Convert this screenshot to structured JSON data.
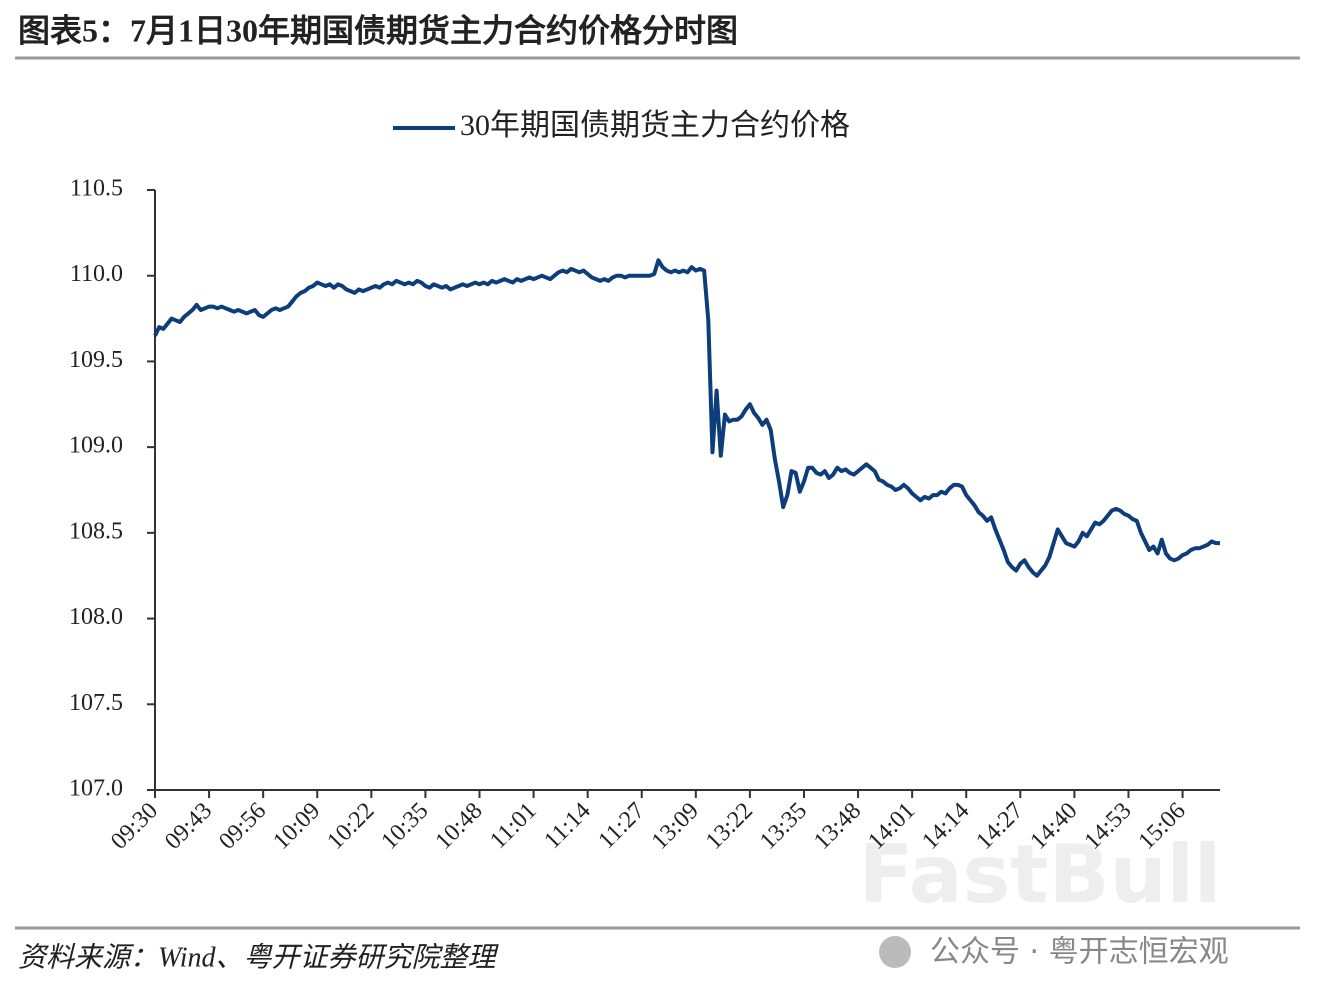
{
  "header": {
    "title": "图表5：7月1日30年期国债期货主力合约价格分时图"
  },
  "chart_data": {
    "type": "line",
    "categories": [
      "09:30",
      null,
      null,
      null,
      null,
      null,
      null,
      null,
      null,
      null,
      null,
      null,
      null,
      "09:43",
      null,
      null,
      null,
      null,
      null,
      null,
      null,
      null,
      null,
      null,
      null,
      null,
      "09:56",
      null,
      null,
      null,
      null,
      null,
      null,
      null,
      null,
      null,
      null,
      null,
      null,
      "10:09",
      null,
      null,
      null,
      null,
      null,
      null,
      null,
      null,
      null,
      null,
      null,
      null,
      "10:22",
      null,
      null,
      null,
      null,
      null,
      null,
      null,
      null,
      null,
      null,
      null,
      null,
      "10:35",
      null,
      null,
      null,
      null,
      null,
      null,
      null,
      null,
      null,
      null,
      null,
      null,
      "10:48",
      null,
      null,
      null,
      null,
      null,
      null,
      null,
      null,
      null,
      null,
      null,
      null,
      "11:01",
      null,
      null,
      null,
      null,
      null,
      null,
      null,
      null,
      null,
      null,
      null,
      null,
      "11:14",
      null,
      null,
      null,
      null,
      null,
      null,
      null,
      null,
      null,
      null,
      null,
      null,
      "11:27",
      null,
      null,
      null,
      null,
      null,
      null,
      null,
      null,
      null,
      null,
      null,
      null,
      "13:09",
      null,
      null,
      null,
      null,
      null,
      null,
      null,
      null,
      null,
      null,
      null,
      null,
      "13:22",
      null,
      null,
      null,
      null,
      null,
      null,
      null,
      null,
      null,
      null,
      null,
      null,
      "13:35",
      null,
      null,
      null,
      null,
      null,
      null,
      null,
      null,
      null,
      null,
      null,
      null,
      "13:48",
      null,
      null,
      null,
      null,
      null,
      null,
      null,
      null,
      null,
      null,
      null,
      null,
      "14:01",
      null,
      null,
      null,
      null,
      null,
      null,
      null,
      null,
      null,
      null,
      null,
      null,
      "14:14",
      null,
      null,
      null,
      null,
      null,
      null,
      null,
      null,
      null,
      null,
      null,
      null,
      "14:27",
      null,
      null,
      null,
      null,
      null,
      null,
      null,
      null,
      null,
      null,
      null,
      null,
      "14:40",
      null,
      null,
      null,
      null,
      null,
      null,
      null,
      null,
      null,
      null,
      null,
      null,
      "14:53",
      null,
      null,
      null,
      null,
      null,
      null,
      null,
      null,
      null,
      null,
      null,
      null,
      "15:06",
      null,
      null,
      null,
      null,
      null,
      null,
      null,
      null,
      null
    ],
    "series": [
      {
        "name": "30年期国债期货主力合约价格",
        "color": "#0d3d7a",
        "values": [
          109.65,
          109.7,
          109.69,
          109.72,
          109.75,
          109.74,
          109.73,
          109.76,
          109.78,
          109.8,
          109.83,
          109.8,
          109.81,
          109.82,
          109.82,
          109.81,
          109.82,
          109.81,
          109.8,
          109.79,
          109.8,
          109.79,
          109.78,
          109.79,
          109.8,
          109.77,
          109.76,
          109.78,
          109.8,
          109.81,
          109.8,
          109.81,
          109.82,
          109.85,
          109.88,
          109.9,
          109.91,
          109.93,
          109.94,
          109.96,
          109.95,
          109.94,
          109.95,
          109.93,
          109.95,
          109.94,
          109.92,
          109.91,
          109.9,
          109.92,
          109.91,
          109.92,
          109.93,
          109.94,
          109.93,
          109.95,
          109.96,
          109.95,
          109.97,
          109.96,
          109.95,
          109.96,
          109.95,
          109.97,
          109.96,
          109.94,
          109.93,
          109.95,
          109.94,
          109.93,
          109.94,
          109.92,
          109.93,
          109.94,
          109.95,
          109.94,
          109.95,
          109.96,
          109.95,
          109.96,
          109.95,
          109.97,
          109.96,
          109.97,
          109.98,
          109.97,
          109.96,
          109.98,
          109.97,
          109.98,
          109.99,
          109.98,
          109.99,
          110.0,
          109.99,
          109.98,
          110.0,
          110.02,
          110.03,
          110.02,
          110.04,
          110.03,
          110.02,
          110.03,
          110.01,
          109.99,
          109.98,
          109.97,
          109.98,
          109.97,
          109.99,
          110.0,
          110.0,
          109.99,
          110.0,
          110.0,
          110.0,
          110.0,
          110.0,
          110.0,
          110.01,
          110.09,
          110.05,
          110.03,
          110.02,
          110.03,
          110.02,
          110.03,
          110.02,
          110.05,
          110.03,
          110.04,
          110.03,
          109.74,
          108.97,
          109.33,
          108.95,
          109.19,
          109.15,
          109.16,
          109.16,
          109.18,
          109.22,
          109.25,
          109.2,
          109.17,
          109.13,
          109.16,
          109.1,
          108.93,
          108.8,
          108.65,
          108.72,
          108.86,
          108.85,
          108.74,
          108.8,
          108.88,
          108.88,
          108.85,
          108.84,
          108.86,
          108.82,
          108.84,
          108.88,
          108.86,
          108.87,
          108.85,
          108.84,
          108.86,
          108.88,
          108.9,
          108.88,
          108.86,
          108.81,
          108.8,
          108.78,
          108.77,
          108.75,
          108.76,
          108.78,
          108.76,
          108.73,
          108.71,
          108.69,
          108.71,
          108.7,
          108.72,
          108.72,
          108.74,
          108.73,
          108.76,
          108.78,
          108.78,
          108.77,
          108.72,
          108.69,
          108.66,
          108.62,
          108.6,
          108.57,
          108.59,
          108.52,
          108.46,
          108.4,
          108.33,
          108.3,
          108.28,
          108.32,
          108.34,
          108.3,
          108.27,
          108.25,
          108.28,
          108.31,
          108.36,
          108.44,
          108.52,
          108.48,
          108.44,
          108.43,
          108.42,
          108.45,
          108.5,
          108.48,
          108.52,
          108.56,
          108.55,
          108.57,
          108.6,
          108.63,
          108.64,
          108.63,
          108.61,
          108.6,
          108.58,
          108.57,
          108.5,
          108.45,
          108.4,
          108.42,
          108.38,
          108.46,
          108.38,
          108.35,
          108.34,
          108.35,
          108.37,
          108.38,
          108.4,
          108.41,
          108.41,
          108.42,
          108.43,
          108.45,
          108.44,
          108.44
        ]
      }
    ],
    "ylim": [
      107,
      110.5
    ],
    "yticks": [
      {
        "value": 107,
        "label": "107.0"
      },
      107.5,
      {
        "value": 108,
        "label": "108.0"
      },
      108.5,
      {
        "value": 109,
        "label": "109.0"
      },
      109.5,
      {
        "value": 110,
        "label": "110.0"
      },
      110.5
    ],
    "legend": "top"
  },
  "footer": {
    "source": "资料来源：Wind、粤开证券研究院整理",
    "watermark": "公众号 · 粤开志恒宏观",
    "brand": "FastBull"
  }
}
